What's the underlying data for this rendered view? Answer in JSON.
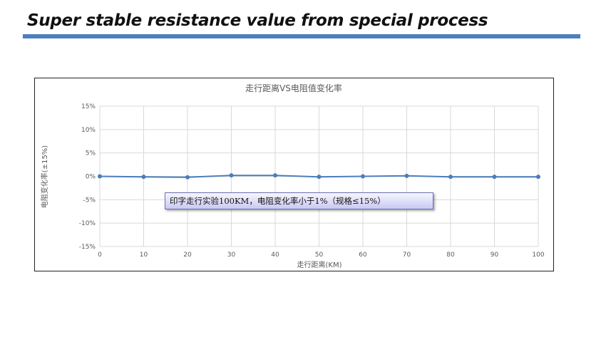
{
  "slide": {
    "title": "Super stable resistance value from special process"
  },
  "chart_data": {
    "type": "line",
    "title": "走行距离VS电阻值变化率",
    "xlabel": "走行距离(KM)",
    "ylabel": "电阻变化率(±15%)",
    "x": [
      0,
      10,
      20,
      30,
      40,
      50,
      60,
      70,
      80,
      90,
      100
    ],
    "series": [
      {
        "values": [
          0.0,
          -0.1,
          -0.2,
          0.2,
          0.2,
          -0.1,
          0.0,
          0.1,
          -0.1,
          -0.1,
          -0.1
        ]
      }
    ],
    "xlim": [
      0,
      100
    ],
    "ylim": [
      -15,
      15
    ],
    "xticks": [
      "0",
      "10",
      "20",
      "30",
      "40",
      "50",
      "60",
      "70",
      "80",
      "90",
      "100"
    ],
    "yticks": [
      "15%",
      "10%",
      "5%",
      "0%",
      "-5%",
      "-10%",
      "-15%"
    ],
    "grid": true,
    "legend": "none",
    "colors": {
      "line": "#4a7ebb",
      "grid": "#d9d9d9",
      "axis_text": "#595959"
    },
    "annotation": "印字走行实验100KM，电阻变化率小于1%（规格≤15%）"
  }
}
